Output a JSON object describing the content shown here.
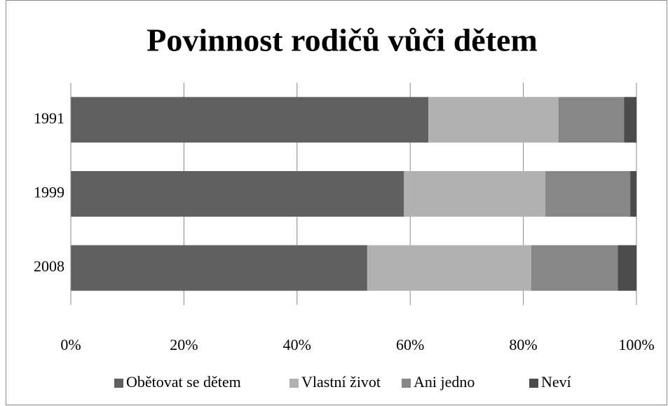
{
  "chart_data": {
    "type": "stacked_barh",
    "title": "Povinnost rodičů vůči dětem",
    "categories": [
      "1991",
      "1999",
      "2008"
    ],
    "series": [
      {
        "name": "Obětovat se dětem",
        "color": "#606060",
        "values": [
          63.2,
          58.9,
          52.4
        ]
      },
      {
        "name": "Vlastní život",
        "color": "#b1b1b1",
        "values": [
          23.0,
          25.0,
          29.0
        ]
      },
      {
        "name": "Ani jedno",
        "color": "#878787",
        "values": [
          11.6,
          15.0,
          15.3
        ]
      },
      {
        "name": "Neví",
        "color": "#4b4b4b",
        "values": [
          2.2,
          1.1,
          3.3
        ]
      }
    ],
    "xlim": [
      0,
      100
    ],
    "xticks": [
      {
        "value": 0,
        "label": "0%"
      },
      {
        "value": 20,
        "label": "20%"
      },
      {
        "value": 40,
        "label": "40%"
      },
      {
        "value": 60,
        "label": "60%"
      },
      {
        "value": 80,
        "label": "80%"
      },
      {
        "value": 100,
        "label": "100%"
      }
    ],
    "grid": true,
    "legend": "bottom"
  }
}
